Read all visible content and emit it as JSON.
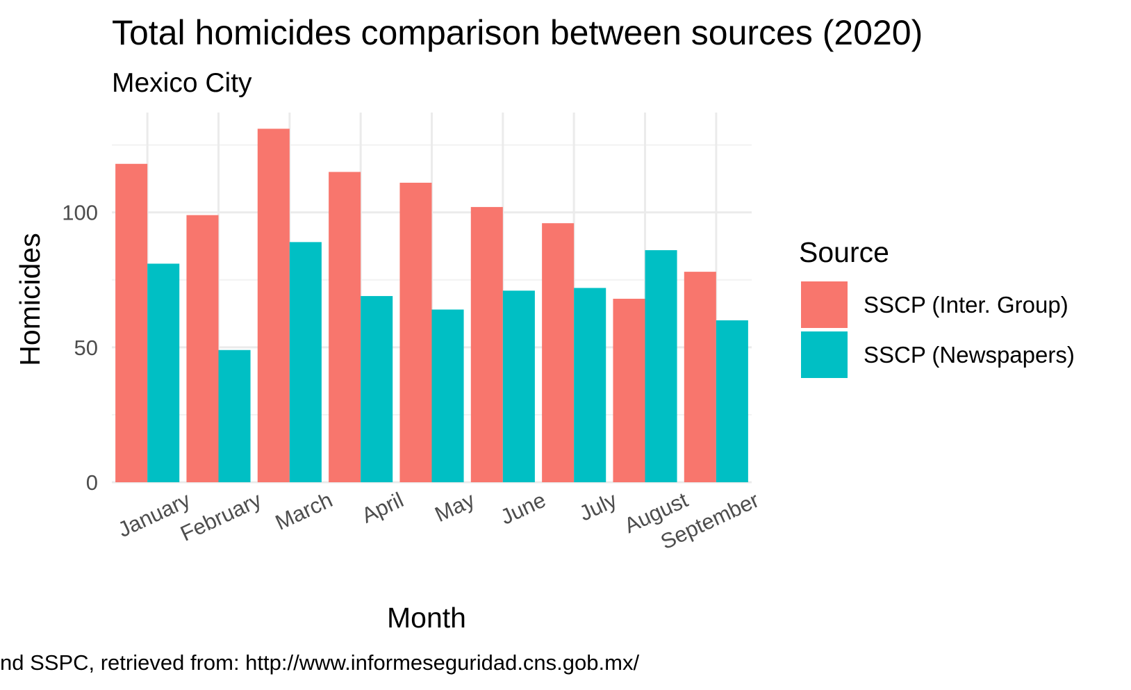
{
  "chart_data": {
    "type": "bar",
    "title": "Total homicides comparison between sources (2020)",
    "subtitle": "Mexico City",
    "xlabel": "Month",
    "ylabel": "Homicides",
    "caption": "nd SSPC, retrieved from: http://www.informeseguridad.cns.gob.mx/",
    "categories": [
      "January",
      "February",
      "March",
      "April",
      "May",
      "June",
      "July",
      "August",
      "September"
    ],
    "series": [
      {
        "name": "SSCP (Inter. Group)",
        "color": "#F8766D",
        "values": [
          118,
          99,
          131,
          115,
          111,
          102,
          96,
          68,
          78
        ]
      },
      {
        "name": "SSCP (Newspapers)",
        "color": "#00BFC4",
        "values": [
          81,
          49,
          89,
          69,
          64,
          71,
          72,
          86,
          60
        ]
      }
    ],
    "ylim": [
      0,
      137
    ],
    "yticks": [
      0,
      50,
      100
    ],
    "grid": true,
    "legend": {
      "title": "Source",
      "position": "right"
    }
  }
}
